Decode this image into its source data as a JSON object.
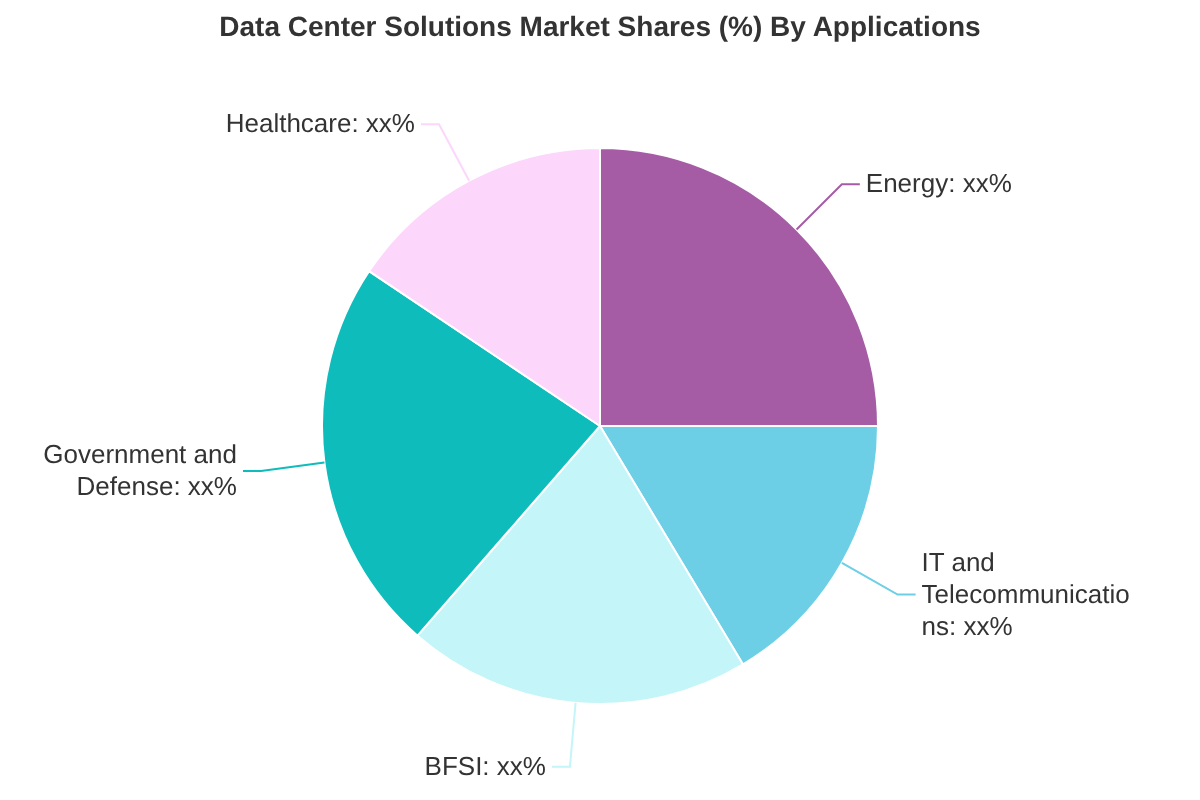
{
  "chart_data": {
    "type": "pie",
    "title": "Data Center Solutions Market Shares (%) By Applications",
    "categories": [
      "Energy",
      "IT and Telecommunications",
      "BFSI",
      "Government and Defense",
      "Healthcare"
    ],
    "values": [
      25,
      16.4,
      20,
      23,
      15.6
    ],
    "colors": [
      "#a55ca5",
      "#6ccfe6",
      "#c4f5f8",
      "#0ebcbc",
      "#fcd7fb"
    ],
    "value_labels": [
      "xx%",
      "xx%",
      "xx%",
      "xx%",
      "xx%"
    ]
  }
}
